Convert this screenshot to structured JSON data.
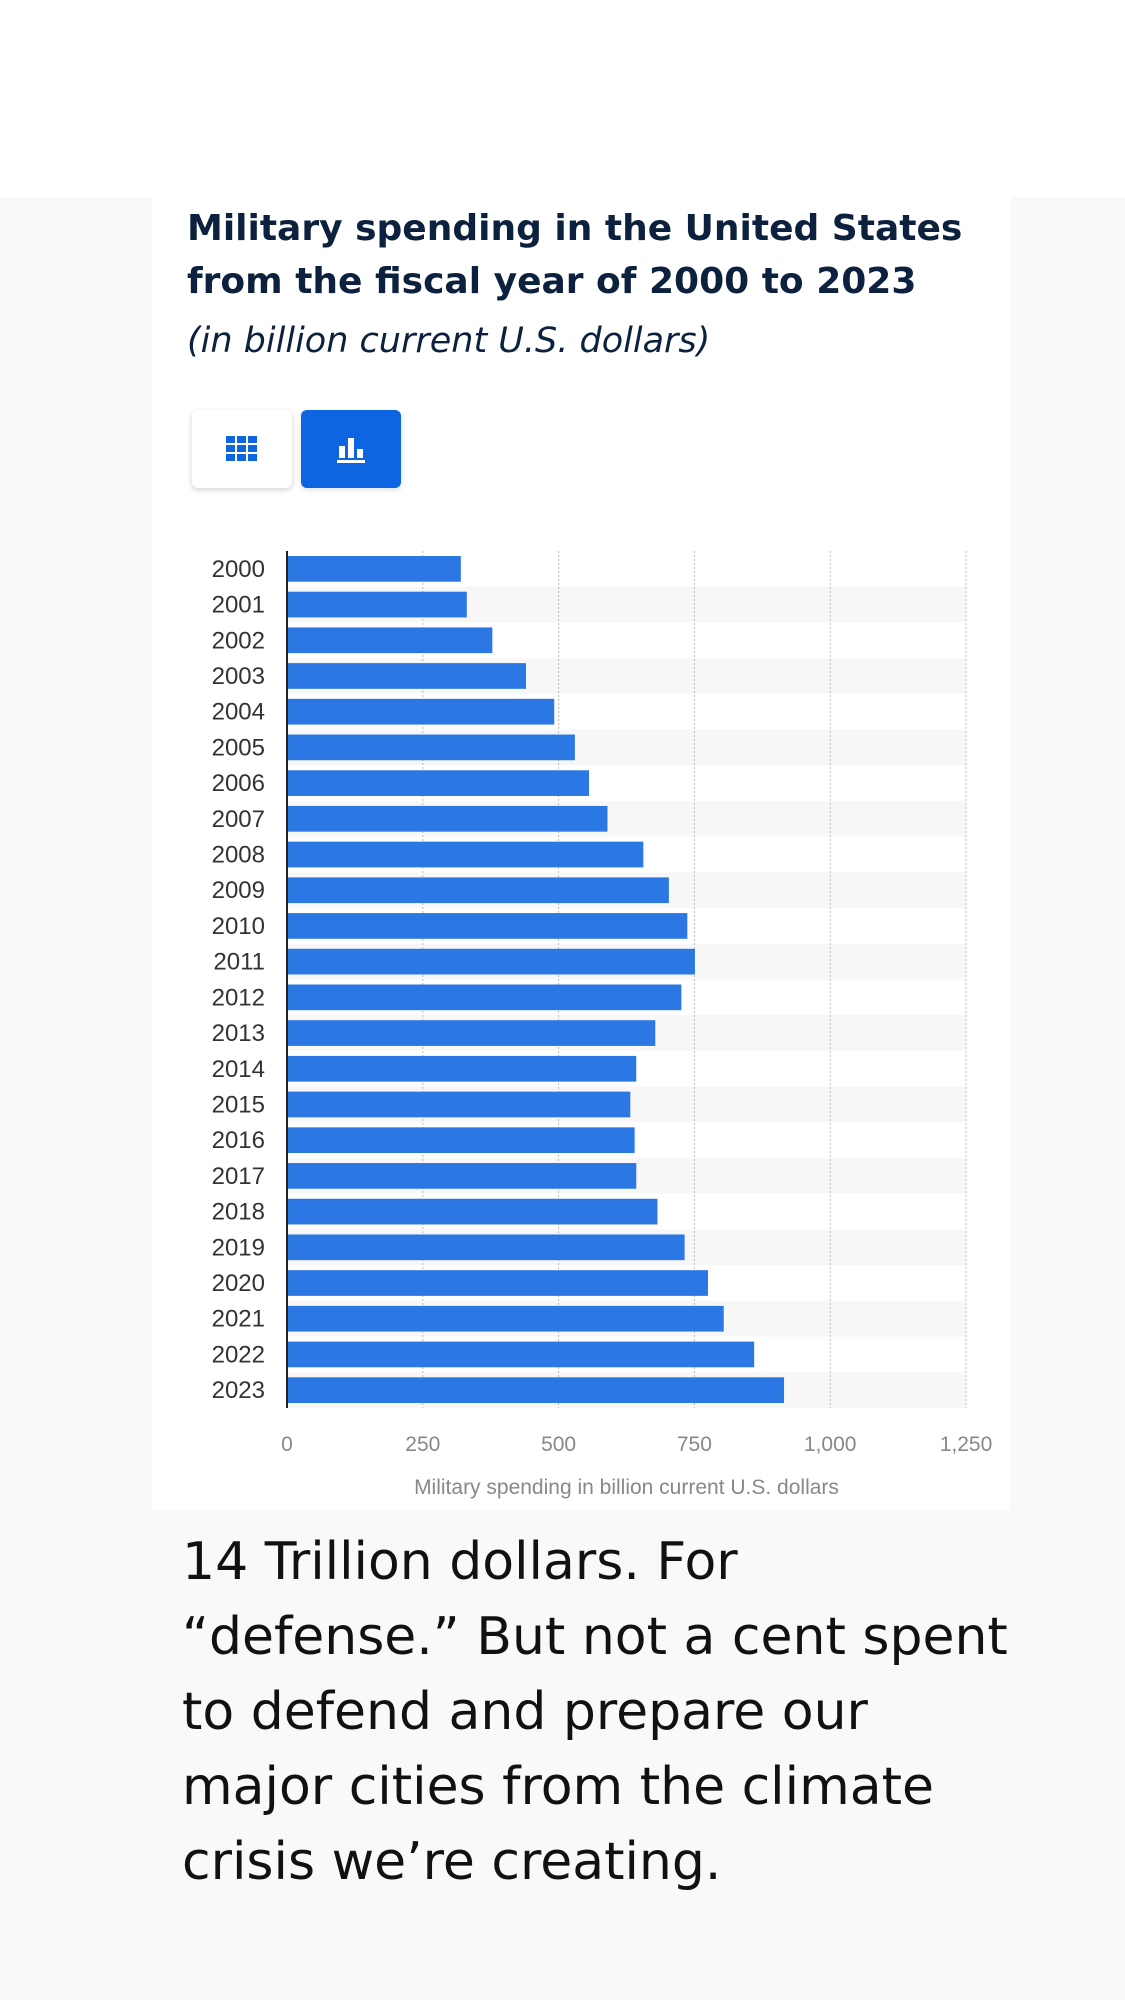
{
  "chart_header": {
    "title": "Military spending in the United States from the fiscal year of 2000 to 2023",
    "subtitle": "(in billion current U.S. dollars)"
  },
  "view_toggle": {
    "table_icon": "table-grid-icon",
    "chart_icon": "bar-chart-icon",
    "active": "chart",
    "active_color": "#0d65e1"
  },
  "chart_data": {
    "type": "bar",
    "orientation": "horizontal",
    "categories": [
      "2000",
      "2001",
      "2002",
      "2003",
      "2004",
      "2005",
      "2006",
      "2007",
      "2008",
      "2009",
      "2010",
      "2011",
      "2012",
      "2013",
      "2014",
      "2015",
      "2016",
      "2017",
      "2018",
      "2019",
      "2020",
      "2021",
      "2022",
      "2023"
    ],
    "values": [
      320,
      331,
      378,
      440,
      492,
      530,
      556,
      590,
      656,
      703,
      737,
      751,
      726,
      678,
      643,
      632,
      640,
      643,
      682,
      732,
      775,
      804,
      860,
      915
    ],
    "xlabel": "Military spending in billion current U.S. dollars",
    "ylabel": "",
    "xlim": [
      0,
      1250
    ],
    "xticks": [
      0,
      250,
      500,
      750,
      1000,
      1250
    ],
    "xtick_labels": [
      "0",
      "250",
      "500",
      "750",
      "1,000",
      "1,250"
    ],
    "grid": true,
    "bar_color": "#2b78e4",
    "stripe_color": "#f7f7f7",
    "grid_color": "#bbbbbb",
    "label_color": "#333333",
    "tick_color": "#888888"
  },
  "caption": "14 Trillion dollars. For “defense.” But not a cent spent to defend and prepare our major cities from the climate crisis we’re creating."
}
